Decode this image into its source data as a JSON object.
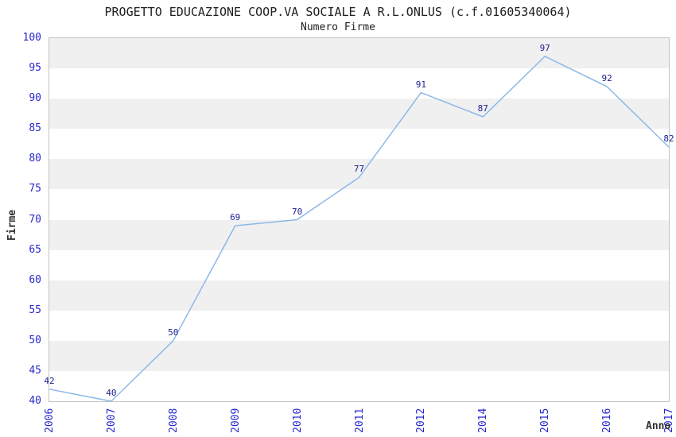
{
  "chart_data": {
    "type": "line",
    "title": "PROGETTO EDUCAZIONE COOP.VA SOCIALE A R.L.ONLUS (c.f.01605340064)",
    "subtitle": "Numero Firme",
    "xlabel": "Anno",
    "ylabel": "Firme",
    "categories": [
      "2006",
      "2007",
      "2008",
      "2009",
      "2010",
      "2011",
      "2012",
      "2014",
      "2015",
      "2016",
      "2017"
    ],
    "series": [
      {
        "name": "Numero Firme",
        "values": [
          42,
          40,
          50,
          69,
          70,
          77,
          91,
          87,
          97,
          92,
          82
        ]
      }
    ],
    "ylim": [
      40,
      100
    ],
    "ytick_step": 5,
    "grid": "alternating-horizontal-bands",
    "legend": "none",
    "markers": "none",
    "data_labels_shown": true,
    "colors": {
      "line": "#8cb8e8",
      "tick_label": "#2828cd",
      "data_label": "#202090",
      "band_gray": "#f0f0f0",
      "band_white": "#ffffff",
      "frame_border": "#c4c4c4",
      "title_text": "#202020",
      "axis_label_text": "#303030",
      "background": "#ffffff"
    }
  }
}
